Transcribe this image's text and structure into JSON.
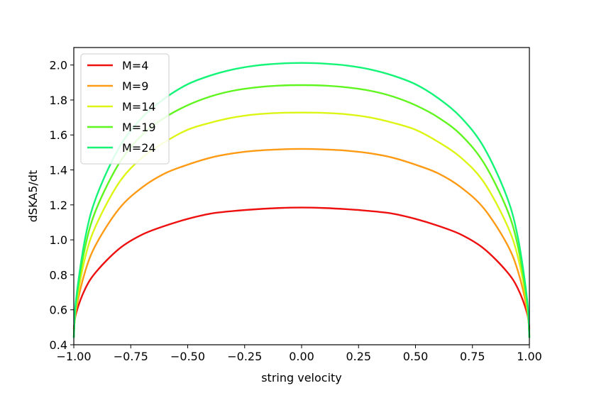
{
  "chart_data": {
    "type": "line",
    "title": "",
    "xlabel": "string velocity",
    "ylabel": "dSKA5/dt",
    "xlim": [
      -1.0,
      1.0
    ],
    "ylim": [
      0.4,
      2.1
    ],
    "xticks": [
      "−1.00",
      "−0.75",
      "−0.50",
      "−0.25",
      "0.00",
      "0.25",
      "0.50",
      "0.75",
      "1.00"
    ],
    "yticks": [
      "0.4",
      "0.6",
      "0.8",
      "1.0",
      "1.2",
      "1.4",
      "1.6",
      "1.8",
      "2.0"
    ],
    "grid": false,
    "legend_position": "top-left",
    "x": [
      -1.0,
      -0.99,
      -0.95,
      -0.9,
      -0.8,
      -0.7,
      -0.6,
      -0.5,
      -0.4,
      -0.3,
      -0.2,
      -0.1,
      0.0,
      0.1,
      0.2,
      0.3,
      0.4,
      0.5,
      0.6,
      0.7,
      0.8,
      0.9,
      0.95,
      0.99,
      1.0
    ],
    "series": [
      {
        "name": "M=4",
        "color": "#ee0f0f",
        "values": [
          0.49,
          0.58,
          0.72,
          0.82,
          0.95,
          1.03,
          1.08,
          1.12,
          1.15,
          1.165,
          1.175,
          1.182,
          1.185,
          1.182,
          1.175,
          1.165,
          1.15,
          1.12,
          1.08,
          1.03,
          0.95,
          0.82,
          0.72,
          0.58,
          0.49
        ]
      },
      {
        "name": "M=9",
        "color": "#ff9a14",
        "values": [
          0.46,
          0.6,
          0.82,
          0.98,
          1.18,
          1.3,
          1.38,
          1.43,
          1.47,
          1.495,
          1.51,
          1.517,
          1.52,
          1.517,
          1.51,
          1.495,
          1.47,
          1.43,
          1.38,
          1.3,
          1.18,
          0.98,
          0.82,
          0.6,
          0.46
        ]
      },
      {
        "name": "M=14",
        "color": "#dcf514",
        "values": [
          0.45,
          0.62,
          0.9,
          1.09,
          1.33,
          1.47,
          1.56,
          1.63,
          1.67,
          1.7,
          1.718,
          1.726,
          1.728,
          1.726,
          1.718,
          1.7,
          1.67,
          1.63,
          1.56,
          1.47,
          1.33,
          1.09,
          0.9,
          0.62,
          0.45
        ]
      },
      {
        "name": "M=19",
        "color": "#5ff51e",
        "values": [
          0.44,
          0.64,
          0.96,
          1.18,
          1.44,
          1.6,
          1.7,
          1.77,
          1.82,
          1.853,
          1.872,
          1.882,
          1.885,
          1.882,
          1.872,
          1.853,
          1.82,
          1.77,
          1.7,
          1.6,
          1.44,
          1.18,
          0.96,
          0.64,
          0.44
        ]
      },
      {
        "name": "M=24",
        "color": "#14f578",
        "values": [
          0.44,
          0.66,
          1.01,
          1.25,
          1.53,
          1.7,
          1.81,
          1.89,
          1.94,
          1.975,
          1.997,
          2.008,
          2.012,
          2.008,
          1.997,
          1.975,
          1.94,
          1.89,
          1.81,
          1.7,
          1.53,
          1.25,
          1.01,
          0.66,
          0.44
        ]
      }
    ]
  }
}
